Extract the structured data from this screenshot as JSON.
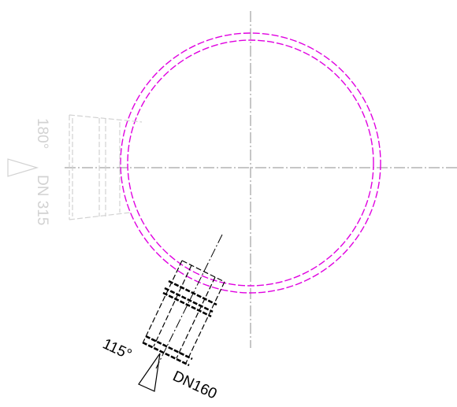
{
  "drawing": {
    "inlet_main": {
      "angle_text": "115°",
      "dn_text": "DN160"
    },
    "inlet_ghost": {
      "angle_text": "180°",
      "dn_text": "DN 315"
    },
    "colors": {
      "manhole_ring": "#e000e0",
      "main_lines": "#000000",
      "centerline": "#8c8c8c",
      "ghost": "#d2d2d2",
      "background": "#ffffff"
    }
  }
}
